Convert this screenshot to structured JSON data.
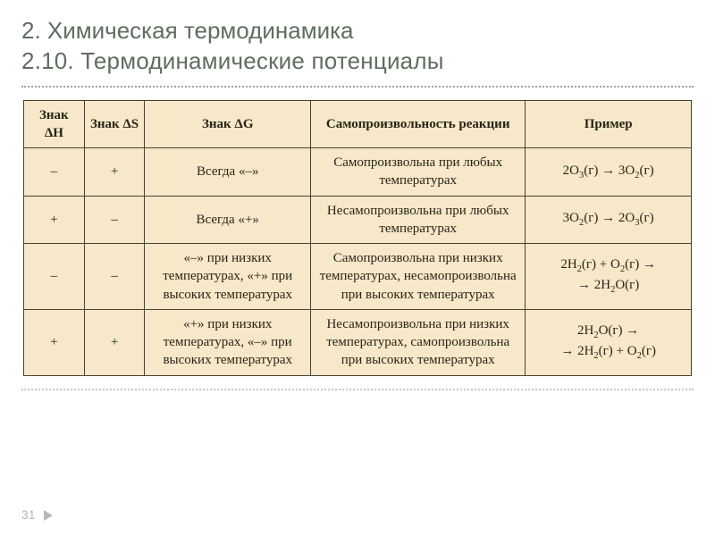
{
  "title": {
    "line1": "2. Химическая термодинамика",
    "line2": "2.10. Термодинамические потенциалы"
  },
  "page_number": "31",
  "colors": {
    "title_color": "#5f6d5f",
    "table_bg": "#f6e8c8",
    "table_border": "#4a4032",
    "text_color": "#2a2418",
    "rule_color": "#9aa69a",
    "pagenum_color": "#b8b8b8"
  },
  "table": {
    "headers": {
      "dH": "Знак ΔH",
      "dS": "Знак ΔS",
      "dG": "Знак ΔG",
      "spon": "Самопроизвольность реакции",
      "example": "Пример"
    },
    "rows": [
      {
        "dH": "–",
        "dS": "+",
        "dG": "Всегда «–»",
        "spon": "Самопроизвольна при любых температурах",
        "example_html": "2O<sub>3</sub>(г) → 3O<sub>2</sub>(г)"
      },
      {
        "dH": "+",
        "dS": "–",
        "dG": "Всегда «+»",
        "spon": "Несамопроизвольна при любых температурах",
        "example_html": "3O<sub>2</sub>(г) → 2O<sub>3</sub>(г)"
      },
      {
        "dH": "–",
        "dS": "–",
        "dG": "«–» при низких температурах, «+» при высоких температурах",
        "spon": "Самопроизвольна при низких температурах, несамопроизвольна при высоких температурах",
        "example_html": "2H<sub>2</sub>(г) + O<sub>2</sub>(г) →<br>→ 2H<sub>2</sub>O(г)"
      },
      {
        "dH": "+",
        "dS": "+",
        "dG": "«+» при низких температурах, «–» при высоких температурах",
        "spon": "Несамопроизвольна при низких температурах, самопроизвольна при высоких температурах",
        "example_html": "2H<sub>2</sub>O(г) →<br>→ 2H<sub>2</sub>(г) + O<sub>2</sub>(г)"
      }
    ]
  }
}
